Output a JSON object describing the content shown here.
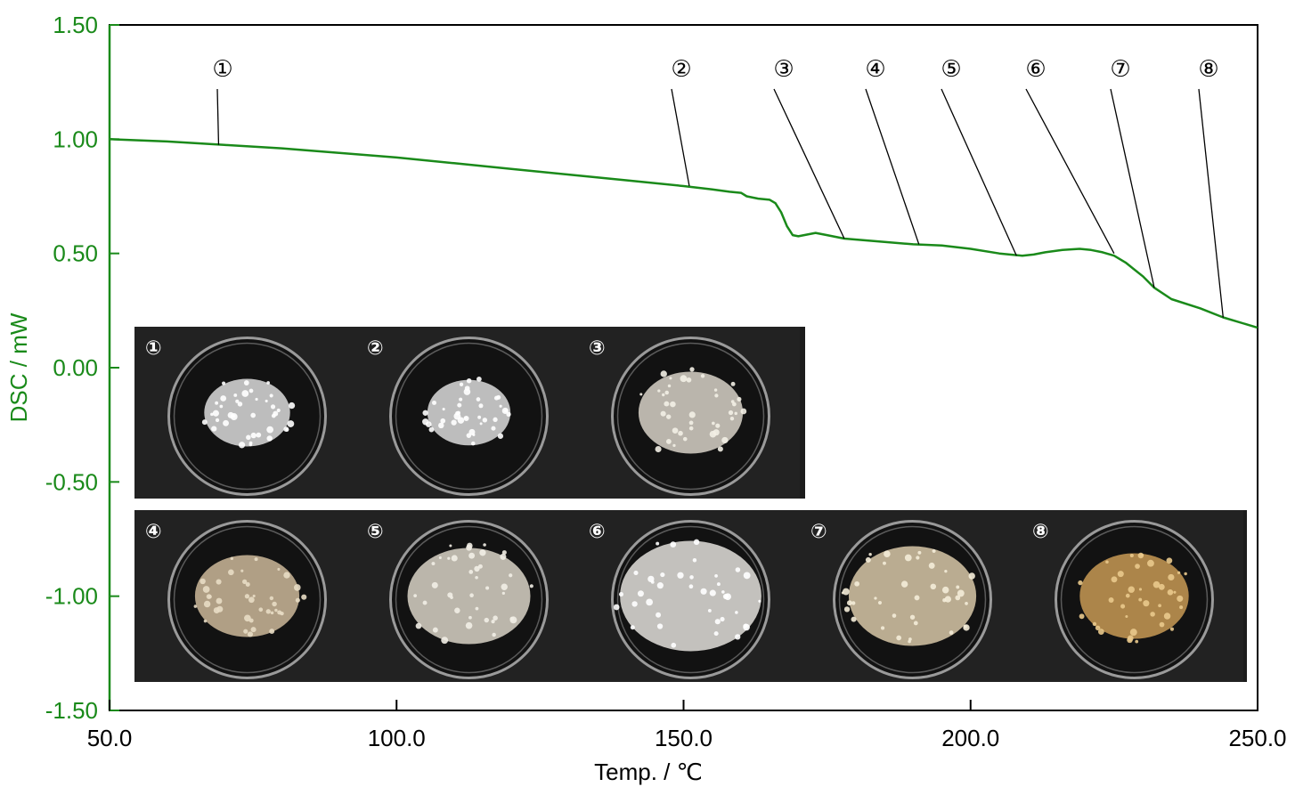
{
  "chart_data": {
    "type": "line",
    "xlabel": "Temp. / ℃",
    "ylabel": "DSC / mW",
    "xlim": [
      50,
      250
    ],
    "ylim": [
      -1.5,
      1.5
    ],
    "x_ticks": [
      "50.0",
      "100.0",
      "150.0",
      "200.0",
      "250.0"
    ],
    "y_ticks": [
      "1.50",
      "1.00",
      "0.50",
      "0.00",
      "-0.50",
      "-1.00",
      "-1.50"
    ],
    "series": [
      {
        "color": "#1a8a1a",
        "points": [
          [
            50,
            1.0
          ],
          [
            60,
            0.99
          ],
          [
            70,
            0.975
          ],
          [
            80,
            0.96
          ],
          [
            90,
            0.94
          ],
          [
            100,
            0.92
          ],
          [
            110,
            0.895
          ],
          [
            120,
            0.87
          ],
          [
            130,
            0.845
          ],
          [
            140,
            0.82
          ],
          [
            150,
            0.795
          ],
          [
            155,
            0.78
          ],
          [
            158,
            0.77
          ],
          [
            160,
            0.765
          ],
          [
            161,
            0.75
          ],
          [
            163,
            0.74
          ],
          [
            165,
            0.735
          ],
          [
            166,
            0.72
          ],
          [
            167,
            0.68
          ],
          [
            168,
            0.62
          ],
          [
            169,
            0.58
          ],
          [
            170,
            0.575
          ],
          [
            171,
            0.58
          ],
          [
            173,
            0.59
          ],
          [
            175,
            0.58
          ],
          [
            178,
            0.565
          ],
          [
            185,
            0.55
          ],
          [
            190,
            0.54
          ],
          [
            195,
            0.535
          ],
          [
            200,
            0.52
          ],
          [
            205,
            0.5
          ],
          [
            209,
            0.49
          ],
          [
            211,
            0.495
          ],
          [
            213,
            0.505
          ],
          [
            216,
            0.515
          ],
          [
            219,
            0.52
          ],
          [
            221,
            0.515
          ],
          [
            223,
            0.505
          ],
          [
            225,
            0.49
          ],
          [
            227,
            0.46
          ],
          [
            230,
            0.4
          ],
          [
            232,
            0.35
          ],
          [
            235,
            0.3
          ],
          [
            240,
            0.26
          ],
          [
            244,
            0.22
          ],
          [
            248,
            0.19
          ],
          [
            250,
            0.175
          ]
        ]
      }
    ],
    "callouts": [
      {
        "label": "①",
        "x": 69,
        "y": 0.975
      },
      {
        "label": "②",
        "x": 151,
        "y": 0.795
      },
      {
        "label": "③",
        "x": 178,
        "y": 0.565
      },
      {
        "label": "④",
        "x": 191,
        "y": 0.54
      },
      {
        "label": "⑤",
        "x": 208,
        "y": 0.49
      },
      {
        "label": "⑥",
        "x": 225,
        "y": 0.5
      },
      {
        "label": "⑦",
        "x": 232,
        "y": 0.35
      },
      {
        "label": "⑧",
        "x": 244,
        "y": 0.22
      }
    ],
    "photos": [
      {
        "label": "①",
        "row": 1,
        "col": 0,
        "fill": "#dcdcdc",
        "tint": "#ffffff",
        "amount": 0.35
      },
      {
        "label": "②",
        "row": 1,
        "col": 1,
        "fill": "#dcdcdc",
        "tint": "#ffffff",
        "amount": 0.32
      },
      {
        "label": "③",
        "row": 1,
        "col": 2,
        "fill": "#d8d2c8",
        "tint": "#f3efe6",
        "amount": 0.55
      },
      {
        "label": "④",
        "row": 2,
        "col": 0,
        "fill": "#cdb89a",
        "tint": "#e8dcc4",
        "amount": 0.55
      },
      {
        "label": "⑤",
        "row": 2,
        "col": 1,
        "fill": "#d9d3c7",
        "tint": "#f2eee6",
        "amount": 0.75
      },
      {
        "label": "⑥",
        "row": 2,
        "col": 2,
        "fill": "#e3e1dc",
        "tint": "#ffffff",
        "amount": 0.95
      },
      {
        "label": "⑦",
        "row": 2,
        "col": 3,
        "fill": "#d8c8a8",
        "tint": "#f4ecd8",
        "amount": 0.8
      },
      {
        "label": "⑧",
        "row": 2,
        "col": 4,
        "fill": "#c89a55",
        "tint": "#e9c98c",
        "amount": 0.6
      }
    ]
  }
}
